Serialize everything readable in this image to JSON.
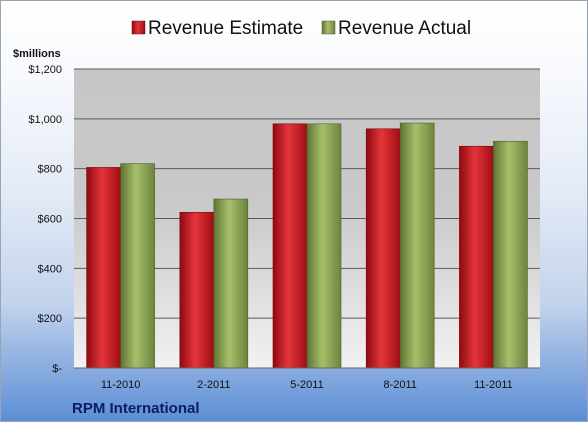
{
  "chart_data": {
    "type": "bar",
    "categories": [
      "11-2010",
      "2-2011",
      "5-2011",
      "8-2011",
      "11-2011"
    ],
    "series": [
      {
        "name": "Revenue Estimate",
        "values": [
          805,
          625,
          980,
          960,
          890
        ],
        "color": "#c8141c"
      },
      {
        "name": "Revenue Actual",
        "values": [
          820,
          678,
          980,
          983,
          910
        ],
        "color": "#8aa352"
      }
    ],
    "ylabel": "$millions",
    "ylim": [
      0,
      1200
    ],
    "yticks": [
      {
        "value": 0,
        "label": "$-"
      },
      {
        "value": 200,
        "label": "$200"
      },
      {
        "value": 400,
        "label": "$400"
      },
      {
        "value": 600,
        "label": "$600"
      },
      {
        "value": 800,
        "label": "$800"
      },
      {
        "value": 1000,
        "label": "$1,000"
      },
      {
        "value": 1200,
        "label": "$1,200"
      }
    ],
    "legend": "top-center",
    "grid": true,
    "footer": "RPM International"
  }
}
